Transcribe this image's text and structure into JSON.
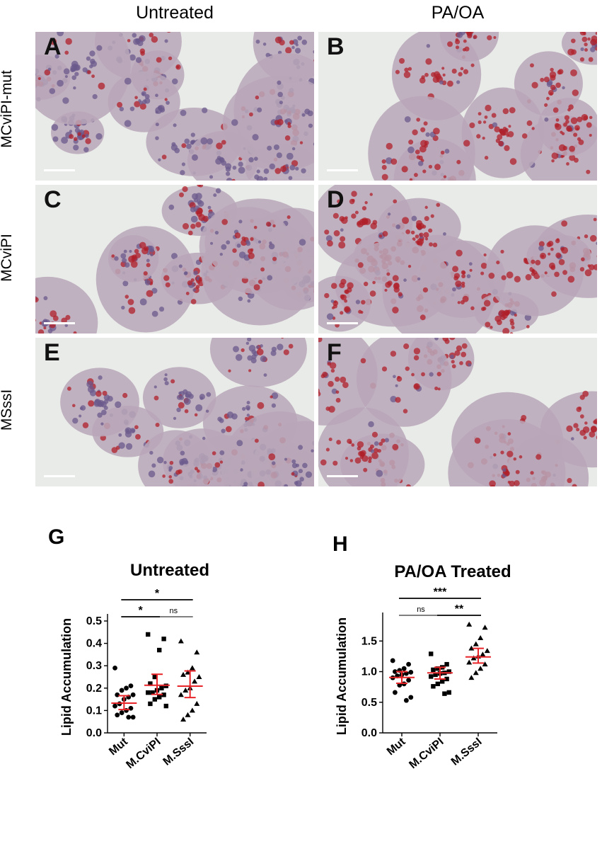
{
  "figure": {
    "columns": [
      "Untreated",
      "PA/OA"
    ],
    "rows": [
      "MCviPI-mut",
      "MCviPI",
      "MSssI"
    ],
    "panels": [
      {
        "letter": "A",
        "stain": "light"
      },
      {
        "letter": "B",
        "stain": "heavy"
      },
      {
        "letter": "C",
        "stain": "medium"
      },
      {
        "letter": "D",
        "stain": "heavy"
      },
      {
        "letter": "E",
        "stain": "light"
      },
      {
        "letter": "F",
        "stain": "heavy"
      }
    ]
  },
  "colors": {
    "stain": "#b0202a",
    "nuclei": "#6b5a8c",
    "background": "#e9ebe8",
    "mean_bar": "#e8262a"
  },
  "chart_data": [
    {
      "type": "scatter",
      "letter": "G",
      "title": "Untreated",
      "ylabel": "Lipid Accumulation",
      "ylim": [
        0,
        0.5
      ],
      "yticks": [
        "0.0",
        "0.1",
        "0.2",
        "0.3",
        "0.4",
        "0.5"
      ],
      "categories": [
        "Mut",
        "M.CviPI",
        "M.SssI"
      ],
      "series": [
        {
          "marker": "circle",
          "mean": 0.133,
          "ci": [
            0.104,
            0.166
          ],
          "values": [
            0.29,
            0.21,
            0.2,
            0.19,
            0.17,
            0.17,
            0.16,
            0.15,
            0.13,
            0.12,
            0.11,
            0.1,
            0.09,
            0.08,
            0.07,
            0.07
          ]
        },
        {
          "marker": "square",
          "mean": 0.213,
          "ci": [
            0.172,
            0.262
          ],
          "values": [
            0.44,
            0.42,
            0.37,
            0.25,
            0.22,
            0.21,
            0.2,
            0.19,
            0.18,
            0.18,
            0.17,
            0.16,
            0.15,
            0.13,
            0.12
          ]
        },
        {
          "marker": "triangle",
          "mean": 0.209,
          "ci": [
            0.158,
            0.277
          ],
          "values": [
            0.41,
            0.36,
            0.29,
            0.27,
            0.26,
            0.25,
            0.23,
            0.2,
            0.19,
            0.17,
            0.13,
            0.1,
            0.08,
            0.06
          ]
        }
      ],
      "comparisons": [
        {
          "from": 0,
          "to": 1,
          "label": "*"
        },
        {
          "from": 1,
          "to": 2,
          "label": "ns"
        },
        {
          "from": 0,
          "to": 2,
          "label": "*"
        }
      ]
    },
    {
      "type": "scatter",
      "letter": "H",
      "title": "PA/OA Treated",
      "ylabel": "Lipid Accumulation",
      "ylim": [
        0,
        1.85
      ],
      "yticks": [
        "0.0",
        "0.5",
        "1.0",
        "1.5"
      ],
      "categories": [
        "Mut",
        "M.CviPI",
        "M.SssI"
      ],
      "series": [
        {
          "marker": "circle",
          "mean": 0.905,
          "ci": [
            0.81,
            1.0
          ],
          "values": [
            1.18,
            1.12,
            1.05,
            1.02,
            1.0,
            0.99,
            0.97,
            0.95,
            0.93,
            0.9,
            0.86,
            0.8,
            0.78,
            0.66,
            0.58,
            0.53
          ]
        },
        {
          "marker": "square",
          "mean": 0.98,
          "ci": [
            0.88,
            1.07
          ],
          "values": [
            1.29,
            1.12,
            1.07,
            1.05,
            1.03,
            1.0,
            0.98,
            0.97,
            0.95,
            0.92,
            0.88,
            0.84,
            0.8,
            0.76,
            0.66,
            0.64
          ]
        },
        {
          "marker": "triangle",
          "mean": 1.24,
          "ci": [
            1.14,
            1.38
          ],
          "values": [
            1.77,
            1.72,
            1.55,
            1.45,
            1.38,
            1.34,
            1.28,
            1.25,
            1.22,
            1.15,
            1.12,
            1.05,
            0.98,
            0.9
          ]
        }
      ],
      "comparisons": [
        {
          "from": 0,
          "to": 1,
          "label": "ns"
        },
        {
          "from": 1,
          "to": 2,
          "label": "**"
        },
        {
          "from": 0,
          "to": 2,
          "label": "***"
        }
      ]
    }
  ]
}
